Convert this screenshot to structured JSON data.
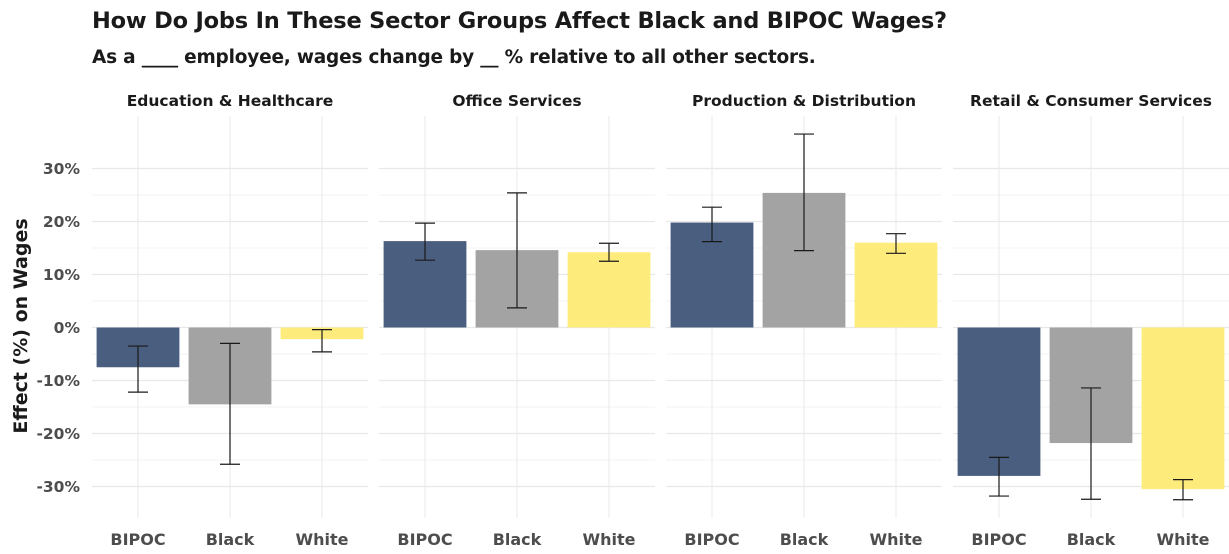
{
  "header": {
    "title": "How Do Jobs In These Sector Groups Affect Black and BIPOC Wages?",
    "subtitle": "As a ____ employee, wages change by __ % relative to all other sectors."
  },
  "chart_data": {
    "type": "bar",
    "title": "How Do Jobs In These Sector Groups Affect Black and BIPOC Wages?",
    "subtitle": "As a ____ employee, wages change by __ % relative to all other sectors.",
    "ylabel": "Effect (%) on Wages",
    "ylim": [
      -36,
      40
    ],
    "y_ticks": [
      -30,
      -20,
      -10,
      0,
      10,
      20,
      30
    ],
    "y_tick_labels": [
      "-30%",
      "-20%",
      "-10%",
      "0%",
      "10%",
      "20%",
      "30%"
    ],
    "categories": [
      "BIPOC",
      "Black",
      "White"
    ],
    "colors": {
      "BIPOC": "#4a5e80",
      "Black": "#a3a3a3",
      "White": "#fdeb7c"
    },
    "grid": true,
    "error_bars": true,
    "panels": [
      {
        "name": "Education & Healthcare",
        "bars": [
          {
            "category": "BIPOC",
            "value": -7.5,
            "low": -12.2,
            "high": -3.5
          },
          {
            "category": "Black",
            "value": -14.5,
            "low": -25.8,
            "high": -3.0
          },
          {
            "category": "White",
            "value": -2.2,
            "low": -4.6,
            "high": -0.4
          }
        ]
      },
      {
        "name": "Office Services",
        "bars": [
          {
            "category": "BIPOC",
            "value": 16.3,
            "low": 12.7,
            "high": 19.7
          },
          {
            "category": "Black",
            "value": 14.6,
            "low": 3.7,
            "high": 25.4
          },
          {
            "category": "White",
            "value": 14.2,
            "low": 12.5,
            "high": 15.9
          }
        ]
      },
      {
        "name": "Production & Distribution",
        "bars": [
          {
            "category": "BIPOC",
            "value": 19.8,
            "low": 16.2,
            "high": 22.7
          },
          {
            "category": "Black",
            "value": 25.4,
            "low": 14.5,
            "high": 36.5
          },
          {
            "category": "White",
            "value": 16.0,
            "low": 14.0,
            "high": 17.7
          }
        ]
      },
      {
        "name": "Retail & Consumer Services",
        "bars": [
          {
            "category": "BIPOC",
            "value": -28.0,
            "low": -31.8,
            "high": -24.5
          },
          {
            "category": "Black",
            "value": -21.8,
            "low": -32.4,
            "high": -11.4
          },
          {
            "category": "White",
            "value": -30.5,
            "low": -32.5,
            "high": -28.7
          }
        ]
      }
    ]
  }
}
